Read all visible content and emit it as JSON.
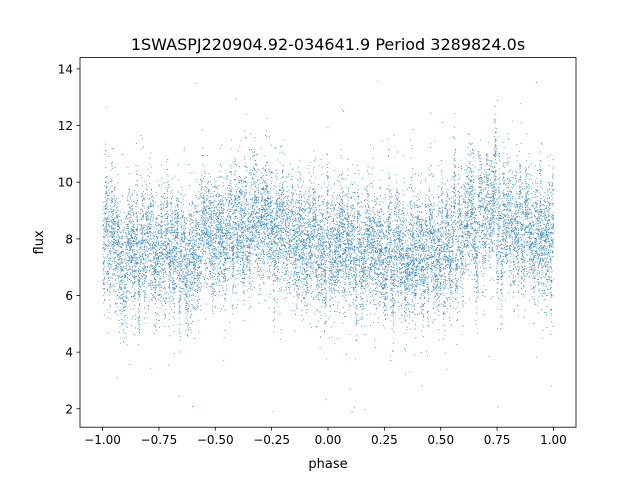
{
  "chart_data": {
    "type": "scatter",
    "title": "1SWASPJ220904.92-034641.9 Period 3289824.0s",
    "xlabel": "phase",
    "ylabel": "flux",
    "xlim": [
      -1.1,
      1.1
    ],
    "ylim": [
      1.35,
      14.4
    ],
    "x_ticks": [
      -1.0,
      -0.75,
      -0.5,
      -0.25,
      0.0,
      0.25,
      0.5,
      0.75,
      1.0
    ],
    "x_tick_labels": [
      "−1.00",
      "−0.75",
      "−0.50",
      "−0.25",
      "0.00",
      "0.25",
      "0.50",
      "0.75",
      "1.00"
    ],
    "y_ticks": [
      2,
      4,
      6,
      8,
      10,
      12,
      14
    ],
    "y_tick_labels": [
      "2",
      "4",
      "6",
      "8",
      "10",
      "12",
      "14"
    ],
    "grid": false,
    "legend": "none",
    "series": [
      {
        "color": "#1f77b4",
        "marker": "point",
        "phase_range": [
          -1.0,
          1.0
        ],
        "points_estimated": 25000,
        "mean_flux_profile": {
          "phase": [
            -1.0,
            -0.9,
            -0.8,
            -0.7,
            -0.6,
            -0.5,
            -0.4,
            -0.3,
            -0.2,
            -0.1,
            0.0,
            0.1,
            0.2,
            0.3,
            0.4,
            0.5,
            0.6,
            0.7,
            0.8,
            0.9,
            1.0
          ],
          "flux": [
            7.9,
            7.6,
            7.4,
            7.3,
            7.5,
            7.9,
            8.2,
            8.5,
            8.5,
            8.2,
            7.9,
            7.6,
            7.4,
            7.3,
            7.5,
            7.9,
            8.2,
            8.5,
            8.5,
            8.2,
            7.9
          ]
        },
        "flux_spread_typical": [
          5.5,
          10.5
        ],
        "flux_extremes": [
          1.9,
          13.6
        ]
      }
    ]
  }
}
